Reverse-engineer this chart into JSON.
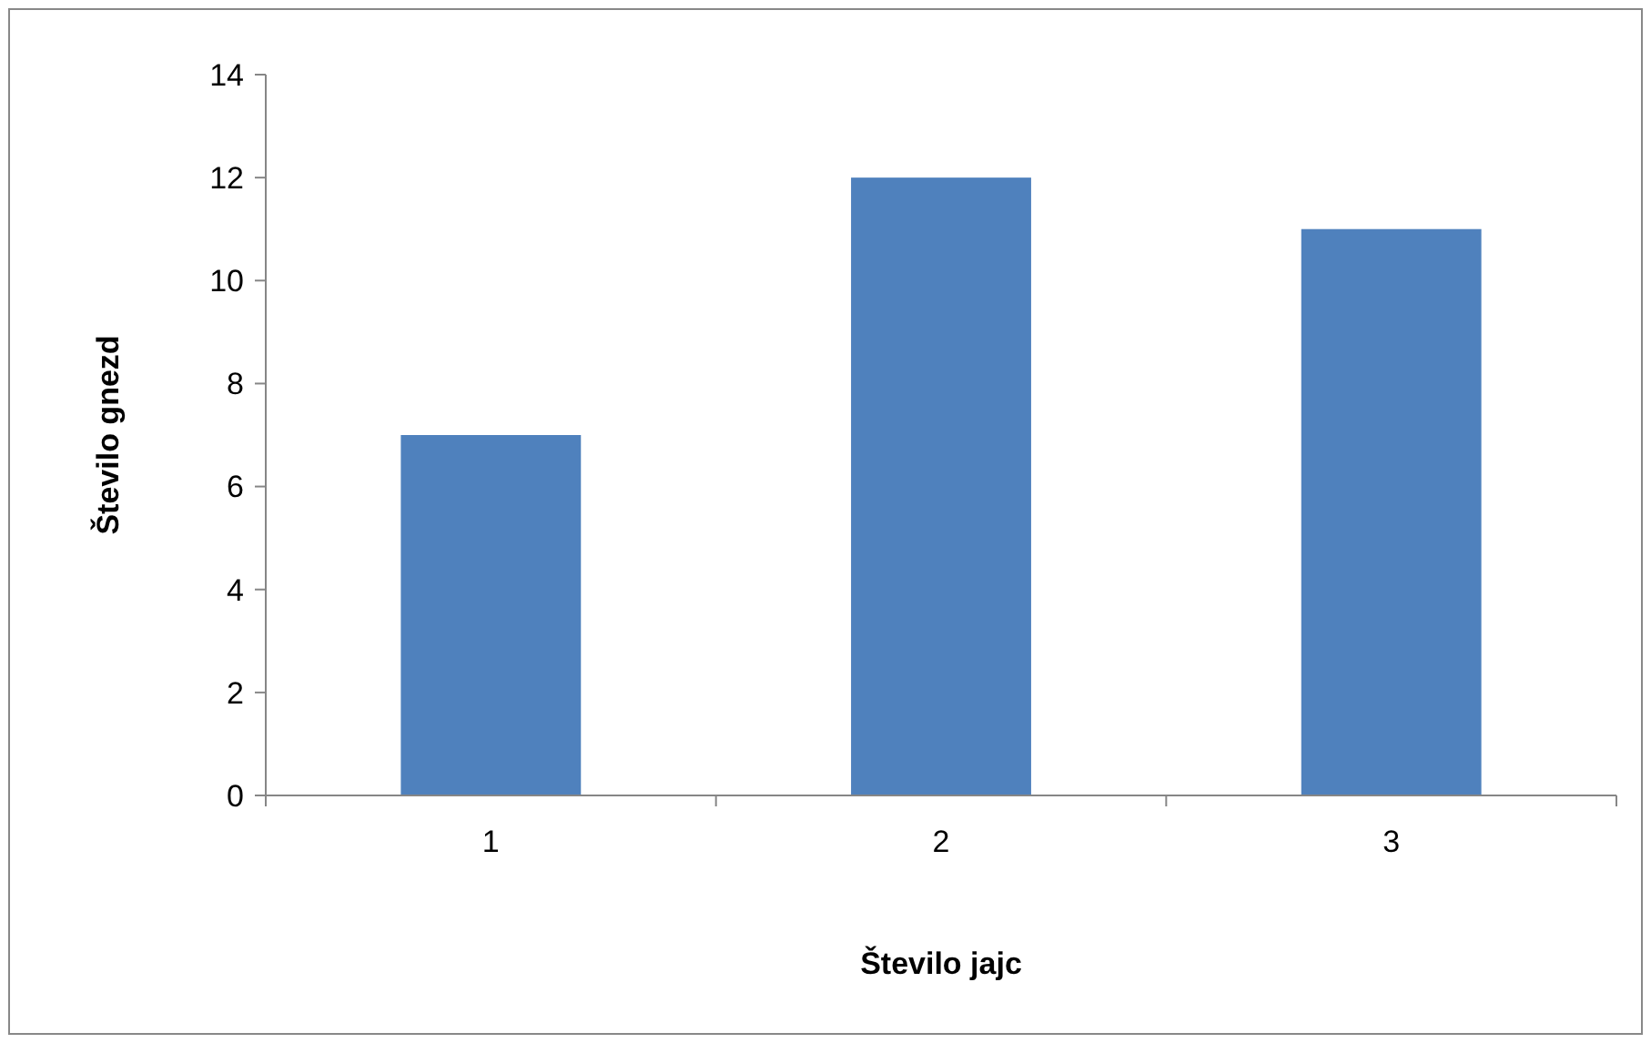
{
  "chart_data": {
    "type": "bar",
    "xlabel": "Število jajc",
    "ylabel": "Število gnezd",
    "categories": [
      "1",
      "2",
      "3"
    ],
    "values": [
      7,
      12,
      11
    ],
    "color": "#4f81bd",
    "ylim": [
      0,
      14
    ],
    "yticks": [
      0,
      2,
      4,
      6,
      8,
      10,
      12,
      14
    ],
    "grid": false
  }
}
